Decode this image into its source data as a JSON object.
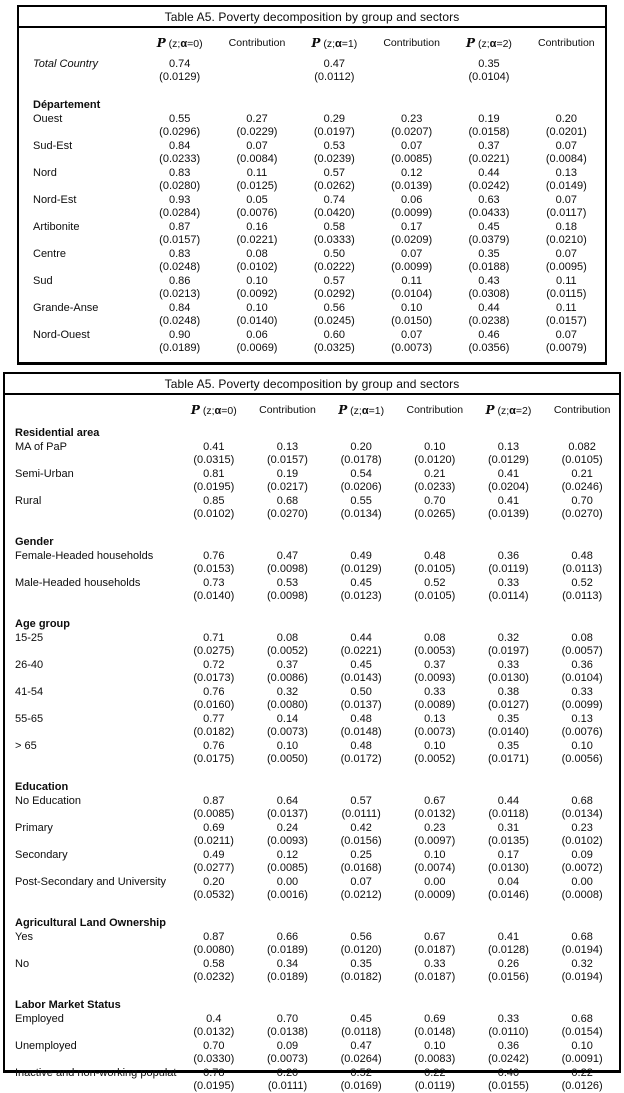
{
  "table_title": "Table A5. Poverty decomposition by group and sectors",
  "column_headers": [
    {
      "kind": "p",
      "p": "P",
      "pre": " (z;",
      "alpha": "α",
      "post": "=0)"
    },
    {
      "kind": "contribution",
      "label": "Contribution"
    },
    {
      "kind": "p",
      "p": "P",
      "pre": " (z;",
      "alpha": "α",
      "post": "=1)"
    },
    {
      "kind": "contribution",
      "label": "Contribution"
    },
    {
      "kind": "p",
      "p": "P",
      "pre": " (z;",
      "alpha": "α",
      "post": "=2)"
    },
    {
      "kind": "contribution",
      "label": "Contribution"
    }
  ],
  "table1": {
    "rows": [
      {
        "type": "data",
        "italic": true,
        "label": "Total Country",
        "values": [
          "0.74",
          "",
          "0.47",
          "",
          "0.35",
          ""
        ],
        "se": [
          "(0.0129)",
          "",
          "(0.0112)",
          "",
          "(0.0104)",
          ""
        ]
      },
      {
        "type": "spacer"
      },
      {
        "type": "group",
        "label": "Département"
      },
      {
        "type": "data",
        "label": "Ouest",
        "values": [
          "0.55",
          "0.27",
          "0.29",
          "0.23",
          "0.19",
          "0.20"
        ],
        "se": [
          "(0.0296)",
          "(0.0229)",
          "(0.0197)",
          "(0.0207)",
          "(0.0158)",
          "(0.0201)"
        ]
      },
      {
        "type": "data",
        "label": "Sud-Est",
        "values": [
          "0.84",
          "0.07",
          "0.53",
          "0.07",
          "0.37",
          "0.07"
        ],
        "se": [
          "(0.0233)",
          "(0.0084)",
          "(0.0239)",
          "(0.0085)",
          "(0.0221)",
          "(0.0084)"
        ]
      },
      {
        "type": "data",
        "label": "Nord",
        "values": [
          "0.83",
          "0.11",
          "0.57",
          "0.12",
          "0.44",
          "0.13"
        ],
        "se": [
          "(0.0280)",
          "(0.0125)",
          "(0.0262)",
          "(0.0139)",
          "(0.0242)",
          "(0.0149)"
        ]
      },
      {
        "type": "data",
        "label": "Nord-Est",
        "values": [
          "0.93",
          "0.05",
          "0.74",
          "0.06",
          "0.63",
          "0.07"
        ],
        "se": [
          "(0.0284)",
          "(0.0076)",
          "(0.0420)",
          "(0.0099)",
          "(0.0433)",
          "(0.0117)"
        ]
      },
      {
        "type": "data",
        "label": "Artibonite",
        "values": [
          "0.87",
          "0.16",
          "0.58",
          "0.17",
          "0.45",
          "0.18"
        ],
        "se": [
          "(0.0157)",
          "(0.0221)",
          "(0.0333)",
          "(0.0209)",
          "(0.0379)",
          "(0.0210)"
        ]
      },
      {
        "type": "data",
        "label": "Centre",
        "values": [
          "0.83",
          "0.08",
          "0.50",
          "0.07",
          "0.35",
          "0.07"
        ],
        "se": [
          "(0.0248)",
          "(0.0102)",
          "(0.0222)",
          "(0.0099)",
          "(0.0188)",
          "(0.0095)"
        ]
      },
      {
        "type": "data",
        "label": "Sud",
        "values": [
          "0.86",
          "0.10",
          "0.57",
          "0.11",
          "0.43",
          "0.11"
        ],
        "se": [
          "(0.0213)",
          "(0.0092)",
          "(0.0292)",
          "(0.0104)",
          "(0.0308)",
          "(0.0115)"
        ]
      },
      {
        "type": "data",
        "label": "Grande-Anse",
        "values": [
          "0.84",
          "0.10",
          "0.56",
          "0.10",
          "0.44",
          "0.11"
        ],
        "se": [
          "(0.0248)",
          "(0.0140)",
          "(0.0245)",
          "(0.0150)",
          "(0.0238)",
          "(0.0157)"
        ]
      },
      {
        "type": "data",
        "label": "Nord-Ouest",
        "values": [
          "0.90",
          "0.06",
          "0.60",
          "0.07",
          "0.46",
          "0.07"
        ],
        "se": [
          "(0.0189)",
          "(0.0069)",
          "(0.0325)",
          "(0.0073)",
          "(0.0356)",
          "(0.0079)"
        ]
      }
    ]
  },
  "table2": {
    "rows": [
      {
        "type": "group",
        "label": "Residential area"
      },
      {
        "type": "data",
        "label": "MA of PaP",
        "values": [
          "0.41",
          "0.13",
          "0.20",
          "0.10",
          "0.13",
          "0.082"
        ],
        "se": [
          "(0.0315)",
          "(0.0157)",
          "(0.0178)",
          "(0.0120)",
          "(0.0129)",
          "(0.0105)"
        ]
      },
      {
        "type": "data",
        "label": "Semi-Urban",
        "values": [
          "0.81",
          "0.19",
          "0.54",
          "0.21",
          "0.41",
          "0.21"
        ],
        "se": [
          "(0.0195)",
          "(0.0217)",
          "(0.0206)",
          "(0.0233)",
          "(0.0204)",
          "(0.0246)"
        ]
      },
      {
        "type": "data",
        "label": "Rural",
        "values": [
          "0.85",
          "0.68",
          "0.55",
          "0.70",
          "0.41",
          "0.70"
        ],
        "se": [
          "(0.0102)",
          "(0.0270)",
          "(0.0134)",
          "(0.0265)",
          "(0.0139)",
          "(0.0270)"
        ]
      },
      {
        "type": "spacer"
      },
      {
        "type": "group",
        "label": "Gender"
      },
      {
        "type": "data",
        "label": "Female-Headed households",
        "values": [
          "0.76",
          "0.47",
          "0.49",
          "0.48",
          "0.36",
          "0.48"
        ],
        "se": [
          "(0.0153)",
          "(0.0098)",
          "(0.0129)",
          "(0.0105)",
          "(0.0119)",
          "(0.0113)"
        ]
      },
      {
        "type": "data",
        "label": "Male-Headed households",
        "values": [
          "0.73",
          "0.53",
          "0.45",
          "0.52",
          "0.33",
          "0.52"
        ],
        "se": [
          "(0.0140)",
          "(0.0098)",
          "(0.0123)",
          "(0.0105)",
          "(0.0114)",
          "(0.0113)"
        ]
      },
      {
        "type": "spacer"
      },
      {
        "type": "group",
        "label": "Age group"
      },
      {
        "type": "data",
        "label": "15-25",
        "values": [
          "0.71",
          "0.08",
          "0.44",
          "0.08",
          "0.32",
          "0.08"
        ],
        "se": [
          "(0.0275)",
          "(0.0052)",
          "(0.0221)",
          "(0.0053)",
          "(0.0197)",
          "(0.0057)"
        ]
      },
      {
        "type": "data",
        "label": "26-40",
        "values": [
          "0.72",
          "0.37",
          "0.45",
          "0.37",
          "0.33",
          "0.36"
        ],
        "se": [
          "(0.0173)",
          "(0.0086)",
          "(0.0143)",
          "(0.0093)",
          "(0.0130)",
          "(0.0104)"
        ]
      },
      {
        "type": "data",
        "label": "41-54",
        "values": [
          "0.76",
          "0.32",
          "0.50",
          "0.33",
          "0.38",
          "0.33"
        ],
        "se": [
          "(0.0160)",
          "(0.0080)",
          "(0.0137)",
          "(0.0089)",
          "(0.0127)",
          "(0.0099)"
        ]
      },
      {
        "type": "data",
        "label": "55-65",
        "values": [
          "0.77",
          "0.14",
          "0.48",
          "0.13",
          "0.35",
          "0.13"
        ],
        "se": [
          "(0.0182)",
          "(0.0073)",
          "(0.0148)",
          "(0.0073)",
          "(0.0140)",
          "(0.0076)"
        ]
      },
      {
        "type": "data",
        "label": "> 65",
        "values": [
          "0.76",
          "0.10",
          "0.48",
          "0.10",
          "0.35",
          "0.10"
        ],
        "se": [
          "(0.0175)",
          "(0.0050)",
          "(0.0172)",
          "(0.0052)",
          "(0.0171)",
          "(0.0056)"
        ]
      },
      {
        "type": "spacer"
      },
      {
        "type": "group",
        "label": "Education"
      },
      {
        "type": "data",
        "label": "No Education",
        "values": [
          "0.87",
          "0.64",
          "0.57",
          "0.67",
          "0.44",
          "0.68"
        ],
        "se": [
          "(0.0085)",
          "(0.0137)",
          "(0.0111)",
          "(0.0132)",
          "(0.0118)",
          "(0.0134)"
        ]
      },
      {
        "type": "data",
        "label": "Primary",
        "values": [
          "0.69",
          "0.24",
          "0.42",
          "0.23",
          "0.31",
          "0.23"
        ],
        "se": [
          "(0.0211)",
          "(0.0093)",
          "(0.0156)",
          "(0.0097)",
          "(0.0135)",
          "(0.0102)"
        ]
      },
      {
        "type": "data",
        "label": "Secondary",
        "values": [
          "0.49",
          "0.12",
          "0.25",
          "0.10",
          "0.17",
          "0.09"
        ],
        "se": [
          "(0.0277)",
          "(0.0085)",
          "(0.0168)",
          "(0.0074)",
          "(0.0130)",
          "(0.0072)"
        ]
      },
      {
        "type": "data",
        "label": "Post-Secondary and University",
        "values": [
          "0.20",
          "0.00",
          "0.07",
          "0.00",
          "0.04",
          "0.00"
        ],
        "se": [
          "(0.0532)",
          "(0.0016)",
          "(0.0212)",
          "(0.0009)",
          "(0.0146)",
          "(0.0008)"
        ]
      },
      {
        "type": "spacer"
      },
      {
        "type": "group",
        "label": "Agricultural Land Ownership"
      },
      {
        "type": "data",
        "label": "Yes",
        "values": [
          "0.87",
          "0.66",
          "0.56",
          "0.67",
          "0.41",
          "0.68"
        ],
        "se": [
          "(0.0080)",
          "(0.0189)",
          "(0.0120)",
          "(0.0187)",
          "(0.0128)",
          "(0.0194)"
        ]
      },
      {
        "type": "data",
        "label": "No",
        "values": [
          "0.58",
          "0.34",
          "0.35",
          "0.33",
          "0.26",
          "0.32"
        ],
        "se": [
          "(0.0232)",
          "(0.0189)",
          "(0.0182)",
          "(0.0187)",
          "(0.0156)",
          "(0.0194)"
        ]
      },
      {
        "type": "spacer"
      },
      {
        "type": "group",
        "label": "Labor Market Status"
      },
      {
        "type": "data",
        "label": "Employed",
        "values": [
          "0.4",
          "0.70",
          "0.45",
          "0.69",
          "0.33",
          "0.68"
        ],
        "se": [
          "(0.0132)",
          "(0.0138)",
          "(0.0118)",
          "(0.0148)",
          "(0.0110)",
          "(0.0154)"
        ]
      },
      {
        "type": "data",
        "label": "Unemployed",
        "values": [
          "0.70",
          "0.09",
          "0.47",
          "0.10",
          "0.36",
          "0.10"
        ],
        "se": [
          "(0.0330)",
          "(0.0073)",
          "(0.0264)",
          "(0.0083)",
          "(0.0242)",
          "(0.0091)"
        ]
      },
      {
        "type": "data",
        "label": "Inactive and non-working population",
        "values": [
          "0.78",
          "0.20",
          "0.52",
          "0.22",
          "0.40",
          "0.22"
        ],
        "se": [
          "(0.0195)",
          "(0.0111)",
          "(0.0169)",
          "(0.0119)",
          "(0.0155)",
          "(0.0126)"
        ]
      }
    ]
  }
}
